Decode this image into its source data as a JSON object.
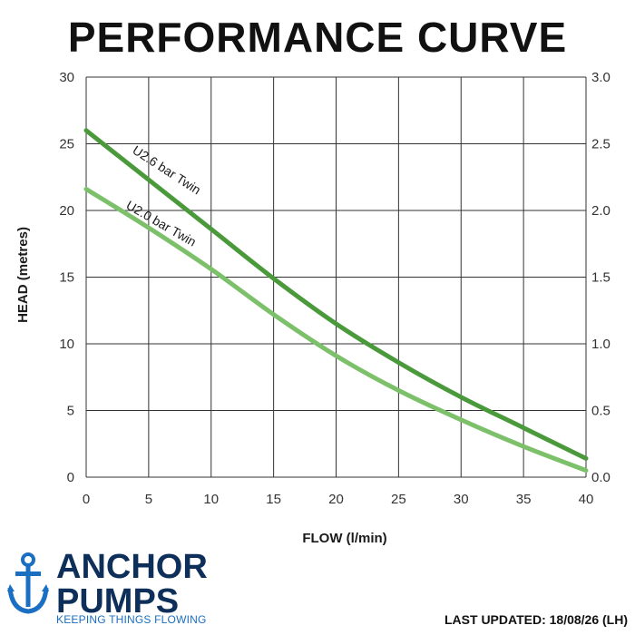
{
  "chart_data": {
    "type": "line",
    "title": "PERFORMANCE CURVE",
    "xlabel": "FLOW (l/min)",
    "ylabel": "HEAD (metres)",
    "xlim": [
      0,
      40
    ],
    "ylim": [
      0,
      30
    ],
    "y2lim": [
      0,
      3.0
    ],
    "x_ticks": [
      "0",
      "5",
      "10",
      "15",
      "20",
      "25",
      "30",
      "35",
      "40"
    ],
    "y_ticks": [
      "0",
      "5",
      "10",
      "15",
      "20",
      "25",
      "30"
    ],
    "y2_ticks": [
      "0.0",
      "0.5",
      "1.0",
      "1.5",
      "2.0",
      "2.5",
      "3.0"
    ],
    "grid": true,
    "series": [
      {
        "name": "U2.6 bar Twin",
        "color": "#4a9a3c",
        "x": [
          0,
          5,
          10,
          15,
          20,
          25,
          30,
          35,
          40
        ],
        "y": [
          26.0,
          22.3,
          18.6,
          14.9,
          11.5,
          8.6,
          6.0,
          3.7,
          1.4
        ]
      },
      {
        "name": "U2.0 bar Twin",
        "color": "#7cc06a",
        "x": [
          0,
          5,
          10,
          15,
          20,
          25,
          30,
          35,
          40
        ],
        "y": [
          21.6,
          18.7,
          15.6,
          12.2,
          9.1,
          6.5,
          4.3,
          2.3,
          0.5
        ]
      }
    ]
  },
  "footer": {
    "brand_line1": "ANCHOR",
    "brand_line2": "PUMPS",
    "tagline": "KEEPING THINGS FLOWING",
    "updated": "LAST UPDATED: 18/08/26 (LH)"
  },
  "colors": {
    "brand": "#0d2f5a",
    "tagline": "#1a6fc2",
    "grid": "#333333"
  },
  "icons": {
    "logo": "anchor-icon"
  }
}
